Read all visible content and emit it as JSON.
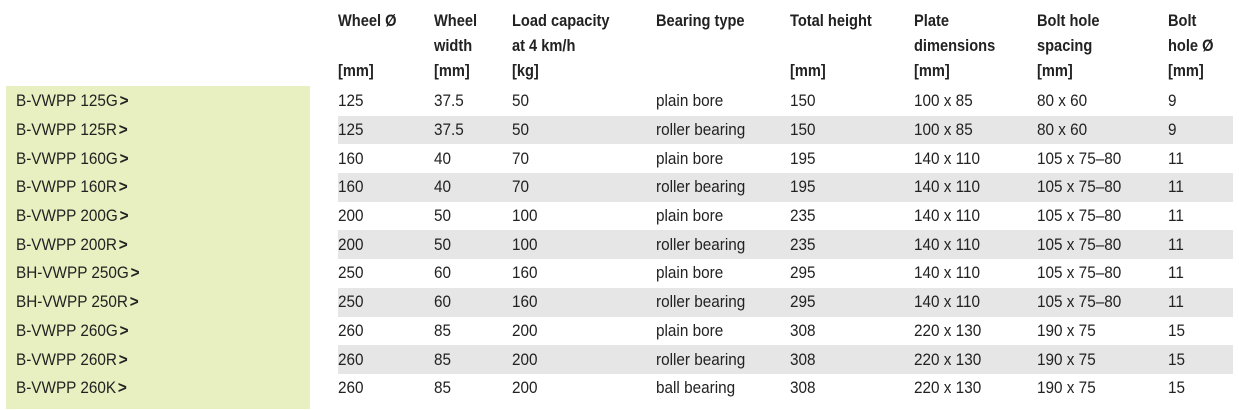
{
  "headers": [
    [
      "Wheel Ø",
      "",
      "[mm]"
    ],
    [
      "Wheel",
      "width",
      "[mm]"
    ],
    [
      "Load capacity",
      "at 4 km/h",
      "[kg]"
    ],
    [
      "Bearing type",
      "",
      ""
    ],
    [
      "Total height",
      "",
      "[mm]"
    ],
    [
      "Plate",
      "dimensions",
      "[mm]"
    ],
    [
      "Bolt hole",
      "spacing",
      "[mm]"
    ],
    [
      "Bolt",
      "hole Ø",
      "[mm]"
    ]
  ],
  "rows": [
    {
      "name": "B-VWPP 125G",
      "arrow": ">",
      "cells": [
        "125",
        "37.5",
        "50",
        "plain bore",
        "150",
        "100 x 85",
        "80 x 60",
        "9"
      ]
    },
    {
      "name": "B-VWPP 125R",
      "arrow": ">",
      "cells": [
        "125",
        "37.5",
        "50",
        "roller bearing",
        "150",
        "100 x 85",
        "80 x 60",
        "9"
      ]
    },
    {
      "name": "B-VWPP 160G",
      "arrow": ">",
      "cells": [
        "160",
        "40",
        "70",
        "plain bore",
        "195",
        "140 x 110",
        "105 x 75–80",
        "11"
      ]
    },
    {
      "name": "B-VWPP 160R",
      "arrow": ">",
      "cells": [
        "160",
        "40",
        "70",
        "roller bearing",
        "195",
        "140 x 110",
        "105 x 75–80",
        "11"
      ]
    },
    {
      "name": "B-VWPP 200G",
      "arrow": ">",
      "cells": [
        "200",
        "50",
        "100",
        "plain bore",
        "235",
        "140 x 110",
        "105 x 75–80",
        "11"
      ]
    },
    {
      "name": "B-VWPP 200R",
      "arrow": ">",
      "cells": [
        "200",
        "50",
        "100",
        "roller bearing",
        "235",
        "140 x 110",
        "105 x 75–80",
        "11"
      ]
    },
    {
      "name": "BH-VWPP 250G",
      "arrow": ">",
      "cells": [
        "250",
        "60",
        "160",
        "plain bore",
        "295",
        "140 x 110",
        "105 x 75–80",
        "11"
      ]
    },
    {
      "name": "BH-VWPP 250R",
      "arrow": ">",
      "cells": [
        "250",
        "60",
        "160",
        "roller bearing",
        "295",
        "140 x 110",
        "105 x 75–80",
        "11"
      ]
    },
    {
      "name": "B-VWPP 260G",
      "arrow": ">",
      "cells": [
        "260",
        "85",
        "200",
        "plain bore",
        "308",
        "220 x 130",
        "190 x 75",
        "15"
      ]
    },
    {
      "name": "B-VWPP 260R",
      "arrow": ">",
      "cells": [
        "260",
        "85",
        "200",
        "roller bearing",
        "308",
        "220 x 130",
        "190 x 75",
        "15"
      ]
    },
    {
      "name": "B-VWPP 260K",
      "arrow": ">",
      "cells": [
        "260",
        "85",
        "200",
        "ball bearing",
        "308",
        "220 x 130",
        "190 x 75",
        "15"
      ]
    }
  ],
  "colors": {
    "sidebar": "#e8efc0",
    "stripe": "#e6e6e6"
  }
}
